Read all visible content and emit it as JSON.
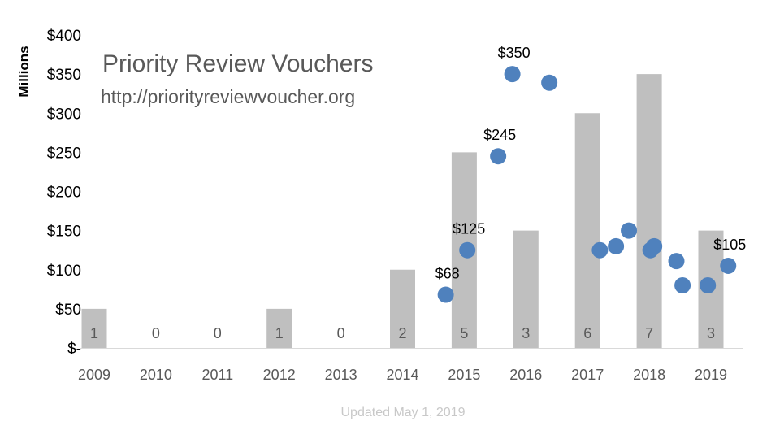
{
  "chart_data": {
    "type": "bar",
    "title": "Priority Review Vouchers",
    "subtitle": "http://priorityreviewvoucher.org",
    "ylabel": "Millions",
    "xlabel": "",
    "footnote": "Updated May 1, 2019",
    "ylim": [
      0,
      400
    ],
    "y_ticks": [
      0,
      50,
      100,
      150,
      200,
      250,
      300,
      350,
      400
    ],
    "y_tick_labels": [
      "$-",
      "$50",
      "$100",
      "$150",
      "$200",
      "$250",
      "$300",
      "$350",
      "$400"
    ],
    "categories": [
      "2009",
      "2010",
      "2011",
      "2012",
      "2013",
      "2014",
      "2015",
      "2016",
      "2017",
      "2018",
      "2019"
    ],
    "bars": {
      "values": [
        50,
        0,
        0,
        50,
        0,
        100,
        250,
        150,
        300,
        350,
        150
      ],
      "count_labels": [
        "1",
        "0",
        "0",
        "1",
        "0",
        "2",
        "5",
        "3",
        "6",
        "7",
        "3"
      ],
      "color": "#bfbfbf"
    },
    "scatter": {
      "color": "#4f81bd",
      "points": [
        {
          "x": 2014.7,
          "y": 68,
          "label": "$68"
        },
        {
          "x": 2015.05,
          "y": 125,
          "label": "$125"
        },
        {
          "x": 2015.55,
          "y": 245,
          "label": "$245"
        },
        {
          "x": 2015.78,
          "y": 350,
          "label": "$350"
        },
        {
          "x": 2016.38,
          "y": 339,
          "label": ""
        },
        {
          "x": 2017.2,
          "y": 125,
          "label": ""
        },
        {
          "x": 2017.46,
          "y": 130,
          "label": ""
        },
        {
          "x": 2017.67,
          "y": 150,
          "label": ""
        },
        {
          "x": 2018.02,
          "y": 125,
          "label": ""
        },
        {
          "x": 2018.08,
          "y": 130,
          "label": ""
        },
        {
          "x": 2018.44,
          "y": 111,
          "label": ""
        },
        {
          "x": 2018.54,
          "y": 80,
          "label": ""
        },
        {
          "x": 2018.95,
          "y": 80,
          "label": ""
        },
        {
          "x": 2019.28,
          "y": 105,
          "label": "$105"
        }
      ]
    },
    "grid": false,
    "legend": "none"
  }
}
